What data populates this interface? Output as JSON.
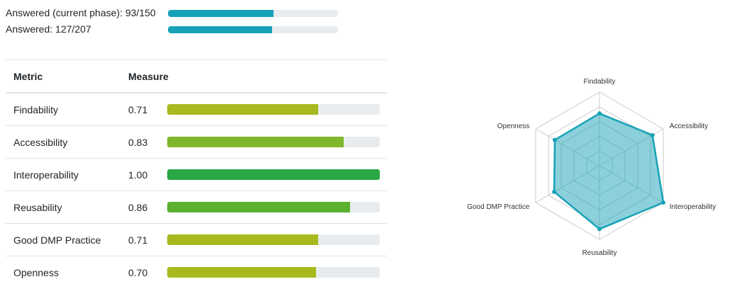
{
  "progress": [
    {
      "label": "Answered (current phase): 93/150",
      "answered": 93,
      "total": 150
    },
    {
      "label": "Answered: 127/207",
      "answered": 127,
      "total": 207
    }
  ],
  "table": {
    "headers": {
      "metric": "Metric",
      "measure": "Measure"
    },
    "rows": [
      {
        "metric": "Findability",
        "value": "0.71",
        "score": 0.71,
        "color": "#a8b91f"
      },
      {
        "metric": "Accessibility",
        "value": "0.83",
        "score": 0.83,
        "color": "#80b62a"
      },
      {
        "metric": "Interoperability",
        "value": "1.00",
        "score": 1.0,
        "color": "#28a745"
      },
      {
        "metric": "Reusability",
        "value": "0.86",
        "score": 0.86,
        "color": "#5cb030"
      },
      {
        "metric": "Good DMP Practice",
        "value": "0.71",
        "score": 0.71,
        "color": "#a8b91f"
      },
      {
        "metric": "Openness",
        "value": "0.70",
        "score": 0.7,
        "color": "#a8b91f"
      }
    ]
  },
  "chart_data": {
    "type": "radar",
    "categories": [
      "Findability",
      "Accessibility",
      "Interoperability",
      "Reusability",
      "Good DMP Practice",
      "Openness"
    ],
    "values": [
      0.71,
      0.83,
      1.0,
      0.86,
      0.71,
      0.7
    ],
    "range": [
      0,
      1
    ],
    "grid_levels": 5,
    "color": "#17a2b8"
  }
}
